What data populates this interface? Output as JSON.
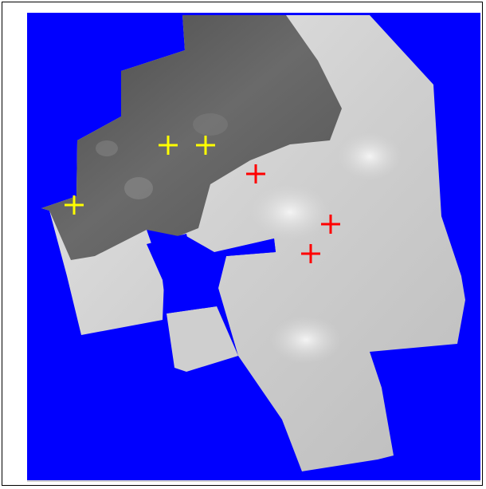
{
  "image": {
    "description_colors": {
      "background": "#0000ff",
      "frame_border": "#000000",
      "dark_region": "#6f6f6f",
      "light_region": "#d6d6d6"
    },
    "markers": {
      "yellow": {
        "color": "#ffff00",
        "count": 3,
        "shape": "plus-cross"
      },
      "red": {
        "color": "#ff0000",
        "count": 3,
        "shape": "plus-cross"
      }
    }
  }
}
